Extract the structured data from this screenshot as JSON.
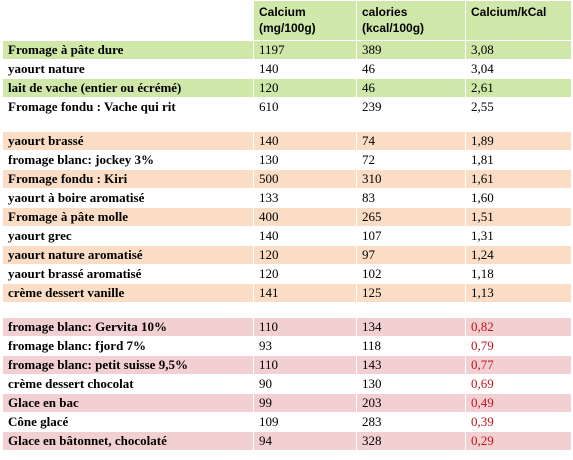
{
  "header": {
    "calcium": "Calcium (mg/100g)",
    "calories": "calories (kcal/100g)",
    "ratio": "Calcium/kCal"
  },
  "colors": {
    "green": "#cfe7a8",
    "orange": "#fbdcc4",
    "pink": "#f2cfd1",
    "red_text": "#c0131c"
  },
  "groups": [
    {
      "tone": "green",
      "rows": [
        {
          "name": "Fromage à pâte dure",
          "calcium": "1197",
          "calories": "389",
          "ratio": "3,08",
          "shade": true
        },
        {
          "name": "yaourt nature",
          "calcium": "140",
          "calories": "46",
          "ratio": "3,04",
          "shade": false
        },
        {
          "name": "lait de vache (entier ou écrémé)",
          "calcium": "120",
          "calories": "46",
          "ratio": "2,61",
          "shade": true
        },
        {
          "name": "Fromage fondu : Vache qui rit",
          "calcium": "610",
          "calories": "239",
          "ratio": "2,55",
          "shade": false
        }
      ]
    },
    {
      "tone": "orange",
      "rows": [
        {
          "name": "yaourt brassé",
          "calcium": "140",
          "calories": "74",
          "ratio": "1,89",
          "shade": true
        },
        {
          "name": "fromage blanc: jockey 3%",
          "calcium": "130",
          "calories": "72",
          "ratio": "1,81",
          "shade": false
        },
        {
          "name": "Fromage fondu : Kiri",
          "calcium": "500",
          "calories": "310",
          "ratio": "1,61",
          "shade": true
        },
        {
          "name": "yaourt à boire aromatisé",
          "calcium": "133",
          "calories": "83",
          "ratio": "1,60",
          "shade": false
        },
        {
          "name": "Fromage à pâte molle",
          "calcium": "400",
          "calories": "265",
          "ratio": "1,51",
          "shade": true
        },
        {
          "name": "yaourt grec",
          "calcium": "140",
          "calories": "107",
          "ratio": "1,31",
          "shade": false
        },
        {
          "name": "yaourt nature aromatisé",
          "calcium": "120",
          "calories": "97",
          "ratio": "1,24",
          "shade": true
        },
        {
          "name": "yaourt brassé aromatisé",
          "calcium": "120",
          "calories": "102",
          "ratio": "1,18",
          "shade": false
        },
        {
          "name": "crème dessert vanille",
          "calcium": "141",
          "calories": "125",
          "ratio": "1,13",
          "shade": true
        }
      ]
    },
    {
      "tone": "pink",
      "rows": [
        {
          "name": "fromage blanc: Gervita 10%",
          "calcium": "110",
          "calories": "134",
          "ratio": "0,82",
          "shade": true
        },
        {
          "name": "fromage blanc: fjord 7%",
          "calcium": "93",
          "calories": "118",
          "ratio": "0,79",
          "shade": false
        },
        {
          "name": "fromage blanc: petit suisse 9,5%",
          "calcium": "110",
          "calories": "143",
          "ratio": "0,77",
          "shade": true
        },
        {
          "name": "crème dessert chocolat",
          "calcium": "90",
          "calories": "130",
          "ratio": "0,69",
          "shade": false
        },
        {
          "name": "Glace en bac",
          "calcium": "99",
          "calories": "203",
          "ratio": "0,49",
          "shade": true
        },
        {
          "name": "Cône glacé",
          "calcium": "109",
          "calories": "283",
          "ratio": "0,39",
          "shade": false
        },
        {
          "name": "Glace en bâtonnet, chocolaté",
          "calcium": "94",
          "calories": "328",
          "ratio": "0,29",
          "shade": true
        }
      ]
    }
  ]
}
